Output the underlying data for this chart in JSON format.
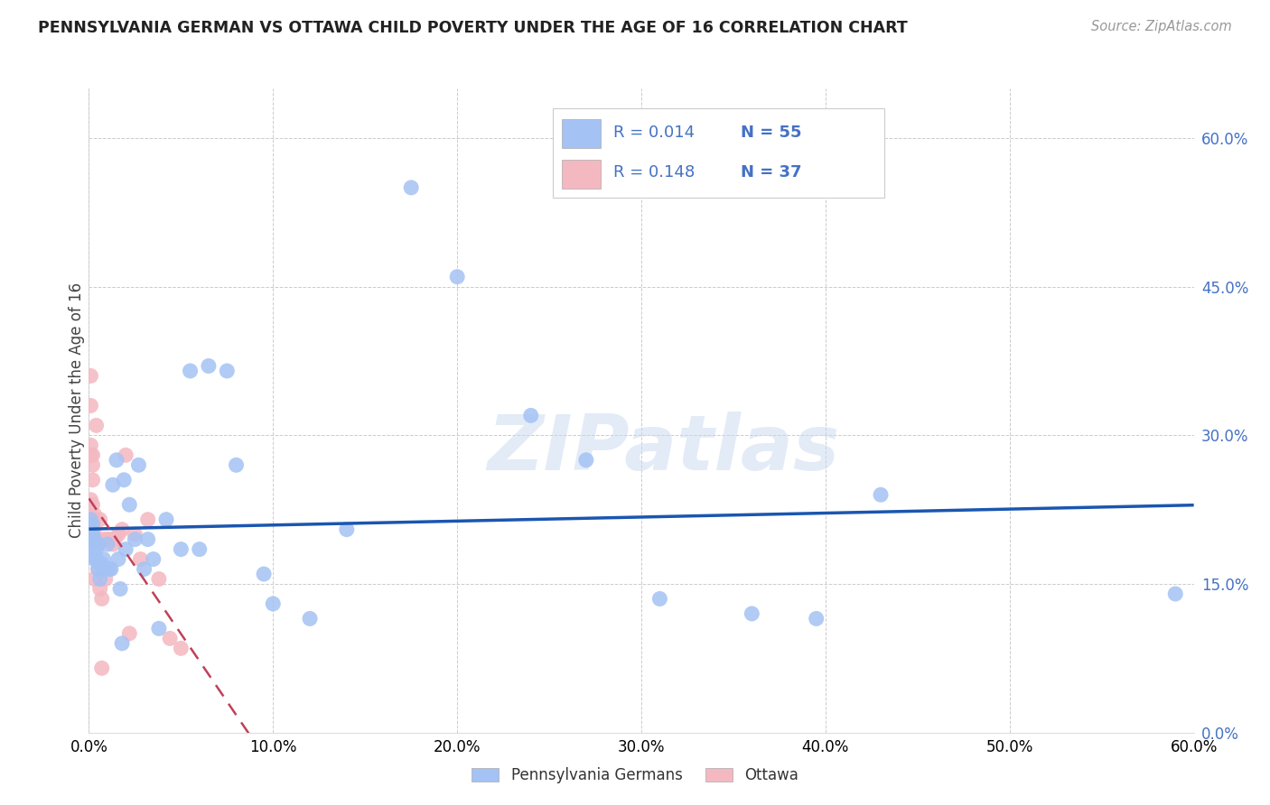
{
  "title": "PENNSYLVANIA GERMAN VS OTTAWA CHILD POVERTY UNDER THE AGE OF 16 CORRELATION CHART",
  "source": "Source: ZipAtlas.com",
  "ylabel": "Child Poverty Under the Age of 16",
  "watermark": "ZIPatlas",
  "legend_labels": [
    "Pennsylvania Germans",
    "Ottawa"
  ],
  "blue_color": "#a4c2f4",
  "pink_color": "#f4b8c1",
  "blue_line_color": "#1a56b0",
  "pink_line_color": "#c0405a",
  "legend_text_color": "#4472c4",
  "grid_color": "#cccccc",
  "background": "#ffffff",
  "title_color": "#222222",
  "source_color": "#999999",
  "ylabel_color": "#444444",
  "xlim": [
    0.0,
    0.6
  ],
  "ylim": [
    0.0,
    0.65
  ],
  "yticks": [
    0.0,
    0.15,
    0.3,
    0.45,
    0.6
  ],
  "xticks": [
    0.0,
    0.1,
    0.2,
    0.3,
    0.4,
    0.5,
    0.6
  ],
  "pa_x": [
    0.001,
    0.001,
    0.001,
    0.002,
    0.002,
    0.002,
    0.003,
    0.003,
    0.003,
    0.004,
    0.004,
    0.005,
    0.005,
    0.006,
    0.006,
    0.007,
    0.008,
    0.009,
    0.01,
    0.011,
    0.012,
    0.013,
    0.015,
    0.016,
    0.017,
    0.018,
    0.019,
    0.02,
    0.022,
    0.025,
    0.027,
    0.03,
    0.032,
    0.035,
    0.038,
    0.042,
    0.05,
    0.055,
    0.06,
    0.065,
    0.075,
    0.08,
    0.095,
    0.1,
    0.12,
    0.14,
    0.175,
    0.2,
    0.24,
    0.27,
    0.31,
    0.36,
    0.395,
    0.43,
    0.59
  ],
  "pa_y": [
    0.215,
    0.205,
    0.195,
    0.21,
    0.2,
    0.185,
    0.195,
    0.19,
    0.175,
    0.185,
    0.175,
    0.165,
    0.19,
    0.17,
    0.155,
    0.17,
    0.175,
    0.165,
    0.19,
    0.165,
    0.165,
    0.25,
    0.275,
    0.175,
    0.145,
    0.09,
    0.255,
    0.185,
    0.23,
    0.195,
    0.27,
    0.165,
    0.195,
    0.175,
    0.105,
    0.215,
    0.185,
    0.365,
    0.185,
    0.37,
    0.365,
    0.27,
    0.16,
    0.13,
    0.115,
    0.205,
    0.55,
    0.46,
    0.32,
    0.275,
    0.135,
    0.12,
    0.115,
    0.24,
    0.14
  ],
  "ott_x": [
    0.001,
    0.001,
    0.001,
    0.001,
    0.001,
    0.002,
    0.002,
    0.002,
    0.002,
    0.003,
    0.003,
    0.003,
    0.003,
    0.004,
    0.004,
    0.005,
    0.005,
    0.006,
    0.006,
    0.007,
    0.007,
    0.008,
    0.009,
    0.01,
    0.011,
    0.013,
    0.014,
    0.016,
    0.018,
    0.02,
    0.022,
    0.025,
    0.028,
    0.032,
    0.038,
    0.044,
    0.05
  ],
  "ott_y": [
    0.36,
    0.33,
    0.29,
    0.28,
    0.235,
    0.28,
    0.27,
    0.255,
    0.23,
    0.22,
    0.215,
    0.2,
    0.155,
    0.31,
    0.195,
    0.19,
    0.165,
    0.215,
    0.145,
    0.135,
    0.065,
    0.195,
    0.155,
    0.195,
    0.195,
    0.19,
    0.195,
    0.2,
    0.205,
    0.28,
    0.1,
    0.2,
    0.175,
    0.215,
    0.155,
    0.095,
    0.085
  ]
}
